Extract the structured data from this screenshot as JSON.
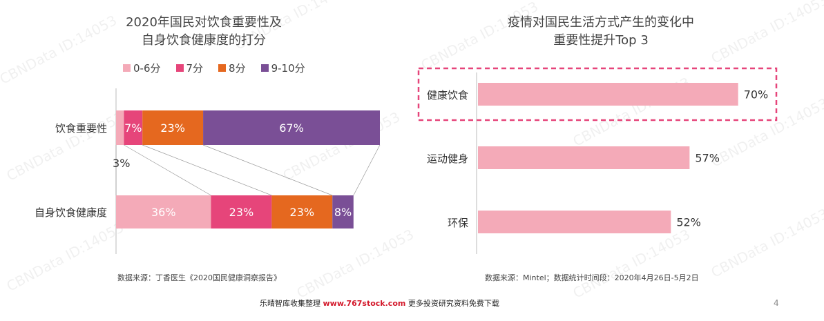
{
  "watermark": "CBNData ID:14053",
  "left": {
    "title_line1": "2020年国民对饮食重要性及",
    "title_line2": "自身饮食健康度的打分",
    "legend": [
      {
        "label": "0-6分",
        "color": "#f4aab8"
      },
      {
        "label": "7分",
        "color": "#e6457a"
      },
      {
        "label": "8分",
        "color": "#e5681f"
      },
      {
        "label": "9-10分",
        "color": "#7a4f96"
      }
    ],
    "source": "数据来源：丁香医生《2020国民健康洞察报告》"
  },
  "right": {
    "title_line1": "疫情对国民生活方式产生的变化中",
    "title_line2": "重要性提升Top 3",
    "source": "数据来源：Mintel；数据统计时间段：2020年4月26日-5月2日"
  },
  "footer": {
    "prefix": "乐晴智库收集整理",
    "brand": "www.767stock.com",
    "suffix": "更多投资研究资料免费下载",
    "page": "4"
  },
  "chart_data": [
    {
      "type": "bar",
      "orientation": "horizontal",
      "stacked": true,
      "categories": [
        "饮食重要性",
        "自身饮食健康度"
      ],
      "series": [
        {
          "name": "0-6分",
          "color": "#f4aab8",
          "values": [
            3,
            36
          ],
          "labels": [
            "3%",
            "36%"
          ]
        },
        {
          "name": "7分",
          "color": "#e6457a",
          "values": [
            7,
            23
          ],
          "labels": [
            "7%",
            "23%"
          ]
        },
        {
          "name": "8分",
          "color": "#e5681f",
          "values": [
            23,
            23
          ],
          "labels": [
            "23%",
            "23%"
          ]
        },
        {
          "name": "9-10分",
          "color": "#7a4f96",
          "values": [
            67,
            8
          ],
          "labels": [
            "67%",
            "8%"
          ]
        }
      ],
      "xlim": [
        0,
        100
      ]
    },
    {
      "type": "bar",
      "orientation": "horizontal",
      "categories": [
        "健康饮食",
        "运动健身",
        "环保"
      ],
      "values": [
        70,
        57,
        52
      ],
      "labels": [
        "70%",
        "57%",
        "52%"
      ],
      "color": "#f4aab8",
      "highlight": "健康饮食",
      "highlight_color": "#e6457a",
      "xlim": [
        0,
        100
      ]
    }
  ]
}
